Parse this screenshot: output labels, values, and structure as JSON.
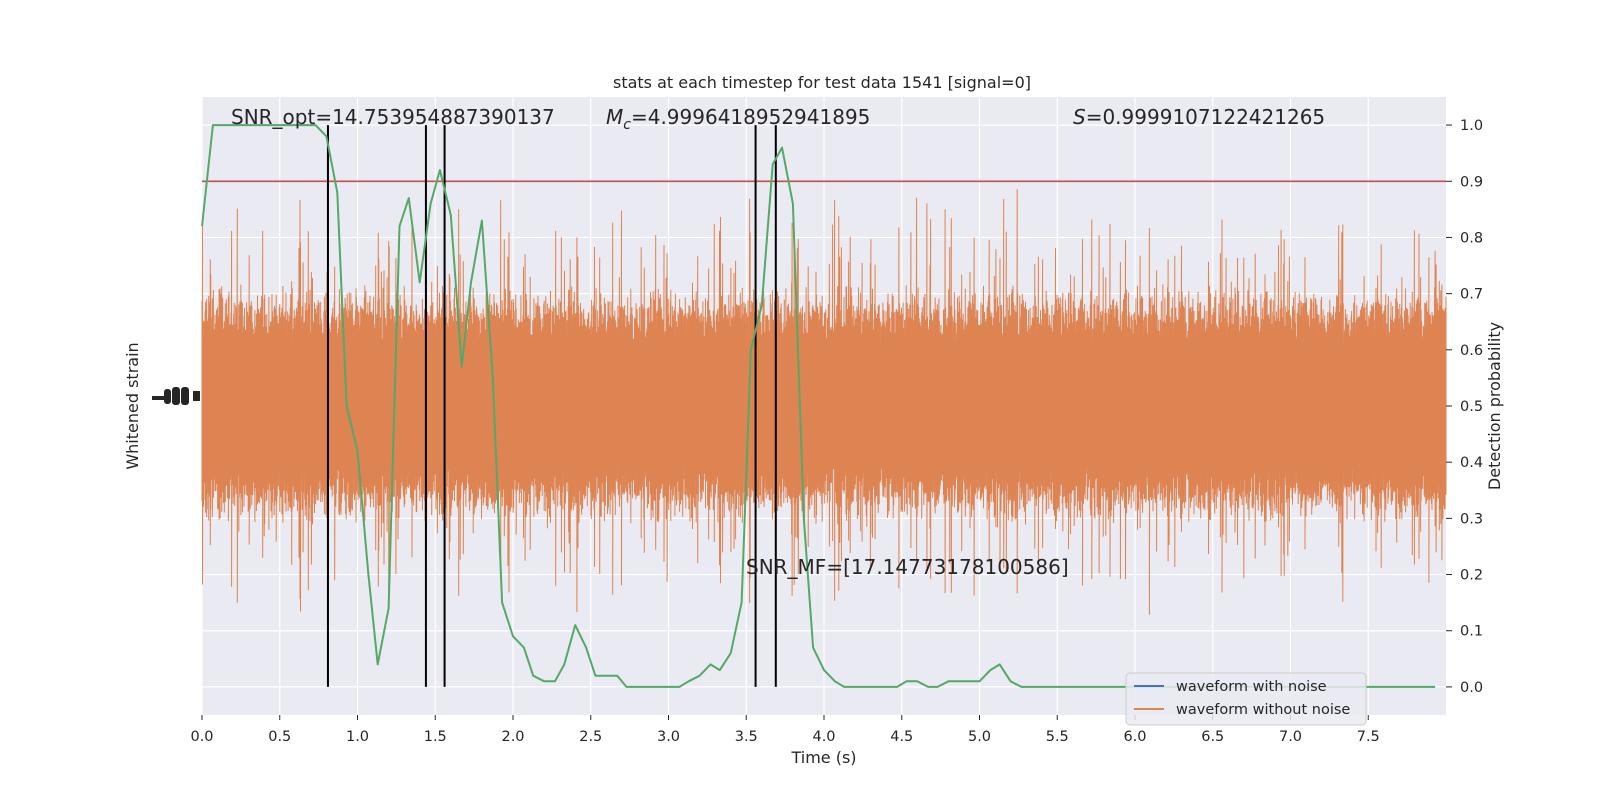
{
  "chart_data": {
    "type": "line",
    "title": "stats at each timestep for test data 1541 [signal=0]",
    "xlabel": "Time (s)",
    "ylabel_left": "Whitened strain",
    "ylabel_right": "Detection probability",
    "xlim": [
      0.0,
      8.0
    ],
    "ylim_right": [
      -0.05,
      1.05
    ],
    "x_ticks": [
      "0.0",
      "0.5",
      "1.0",
      "1.5",
      "2.0",
      "2.5",
      "3.0",
      "3.5",
      "4.0",
      "4.5",
      "5.0",
      "5.5",
      "6.0",
      "6.5",
      "7.0",
      "7.5"
    ],
    "y_ticks_right": [
      "0.0",
      "0.1",
      "0.2",
      "0.3",
      "0.4",
      "0.5",
      "0.6",
      "0.7",
      "0.8",
      "0.9",
      "1.0"
    ],
    "threshold": 0.9,
    "vlines": [
      0.81,
      1.44,
      1.56,
      3.56,
      3.69
    ],
    "annotations": {
      "snr_opt": "SNR_opt=14.753954887390137",
      "mc_symbol": "M",
      "mc_subscript": "c",
      "mc_value": "=4.9996418952941895",
      "s_symbol": "S",
      "s_value": "=0.9999107122421265",
      "snr_mf": "SNR_MF=[17.14773178100586]"
    },
    "legend": {
      "placement": "lower-right",
      "entries": [
        "waveform with noise",
        "waveform without noise"
      ]
    },
    "series": [
      {
        "name": "waveform with noise",
        "color": "#4c72b0",
        "values": []
      },
      {
        "name": "waveform without noise",
        "color": "#dd8452",
        "values": []
      },
      {
        "color": "#55a868",
        "x": [
          0.0,
          0.07,
          0.13,
          0.2,
          0.27,
          0.33,
          0.4,
          0.47,
          0.53,
          0.6,
          0.67,
          0.73,
          0.8,
          0.87,
          0.93,
          1.0,
          1.07,
          1.13,
          1.2,
          1.27,
          1.33,
          1.4,
          1.47,
          1.53,
          1.6,
          1.67,
          1.73,
          1.8,
          1.87,
          1.93,
          2.0,
          2.07,
          2.13,
          2.2,
          2.27,
          2.33,
          2.4,
          2.47,
          2.53,
          2.6,
          2.67,
          2.73,
          2.8,
          2.87,
          2.93,
          3.0,
          3.07,
          3.13,
          3.2,
          3.27,
          3.33,
          3.4,
          3.47,
          3.53,
          3.6,
          3.67,
          3.73,
          3.8,
          3.87,
          3.93,
          4.0,
          4.07,
          4.13,
          4.2,
          4.27,
          4.33,
          4.4,
          4.47,
          4.53,
          4.6,
          4.67,
          4.73,
          4.8,
          4.87,
          4.93,
          5.0,
          5.07,
          5.13,
          5.2,
          5.27,
          5.33,
          5.4,
          5.47,
          5.53,
          5.6,
          5.67,
          5.73,
          5.8,
          5.87,
          5.93,
          6.0,
          6.07,
          6.13,
          6.2,
          6.27,
          6.33,
          6.4,
          6.47,
          6.53,
          6.6,
          6.67,
          6.73,
          6.8,
          6.87,
          6.93,
          7.0,
          7.07,
          7.13,
          7.2,
          7.27,
          7.33,
          7.4,
          7.47,
          7.53,
          7.6,
          7.67,
          7.73,
          7.8,
          7.87,
          7.93
        ],
        "values": [
          0.82,
          1.0,
          1.0,
          1.0,
          1.0,
          1.0,
          1.0,
          1.0,
          1.0,
          1.0,
          1.0,
          1.0,
          0.98,
          0.88,
          0.5,
          0.42,
          0.2,
          0.04,
          0.14,
          0.82,
          0.87,
          0.72,
          0.86,
          0.92,
          0.84,
          0.57,
          0.72,
          0.83,
          0.55,
          0.15,
          0.09,
          0.07,
          0.02,
          0.01,
          0.01,
          0.04,
          0.11,
          0.07,
          0.02,
          0.02,
          0.02,
          0.0,
          0.0,
          0.0,
          0.0,
          0.0,
          0.0,
          0.01,
          0.02,
          0.04,
          0.03,
          0.06,
          0.15,
          0.6,
          0.68,
          0.93,
          0.96,
          0.86,
          0.3,
          0.07,
          0.03,
          0.01,
          0.0,
          0.0,
          0.0,
          0.0,
          0.0,
          0.0,
          0.01,
          0.01,
          0.0,
          0.0,
          0.01,
          0.01,
          0.01,
          0.01,
          0.03,
          0.04,
          0.01,
          0.0,
          0.0,
          0.0,
          0.0,
          0.0,
          0.0,
          0.0,
          0.0,
          0.0,
          0.0,
          0.0,
          0.0,
          0.0,
          0.0,
          0.0,
          0.0,
          0.0,
          0.0,
          0.0,
          0.0,
          0.0,
          0.0,
          0.0,
          0.0,
          0.0,
          0.0,
          0.0,
          0.0,
          0.0,
          0.0,
          0.0,
          0.0,
          0.0,
          0.0,
          0.0,
          0.0,
          0.0,
          0.0,
          0.0,
          0.0,
          0.0
        ]
      }
    ],
    "colors": {
      "axes_bg": "#eaeaf2",
      "grid": "#ffffff",
      "strain": "#dd8452",
      "probability": "#55a868",
      "threshold": "#c44e52",
      "vlines": "#000000"
    }
  }
}
